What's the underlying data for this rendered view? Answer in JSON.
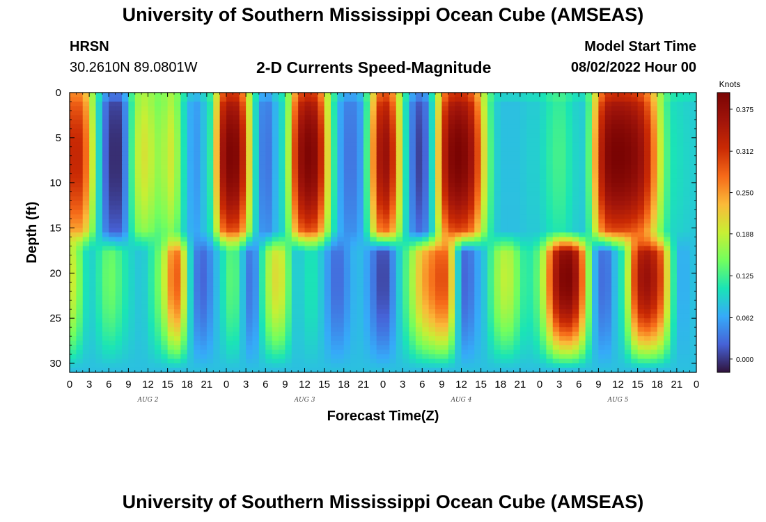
{
  "header": {
    "title": "University of Southern Mississippi Ocean Cube (AMSEAS)",
    "station_id": "HRSN",
    "station_coords": "30.2610N  89.0801W",
    "chart_title": "2-D Currents Speed-Magnitude",
    "start_label": "Model Start Time",
    "start_value": "08/02/2022 Hour 00"
  },
  "footer": {
    "title": "University of Southern Mississippi Ocean Cube (AMSEAS)"
  },
  "chart_data": {
    "type": "heatmap",
    "title": "2-D Currents Speed-Magnitude",
    "xlabel": "Forecast Time(Z)",
    "ylabel": "Depth (ft)",
    "x_range_hours": [
      0,
      96
    ],
    "y_range_ft": [
      0,
      31
    ],
    "y_inverted": true,
    "x_tick_labels": [
      "0",
      "3",
      "6",
      "9",
      "12",
      "15",
      "18",
      "21",
      "0",
      "3",
      "6",
      "9",
      "12",
      "15",
      "18",
      "21",
      "0",
      "3",
      "6",
      "9",
      "12",
      "15",
      "18",
      "21",
      "0",
      "3",
      "6",
      "9",
      "12",
      "15",
      "18",
      "21",
      "0"
    ],
    "day_labels": [
      "AUG 2",
      "AUG 3",
      "AUG 4",
      "AUG 5"
    ],
    "y_tick_values": [
      0,
      5,
      10,
      15,
      20,
      25,
      30
    ],
    "y_tick_labels": [
      "0",
      "5",
      "10",
      "15",
      "20",
      "25",
      "30"
    ],
    "colorbar": {
      "label": "Knots",
      "range": [
        -0.02,
        0.4
      ],
      "tick_values": [
        0.375,
        0.312,
        0.25,
        0.188,
        0.125,
        0.062,
        0.0
      ],
      "tick_labels": [
        "0.375",
        "0.312",
        "0.250",
        "0.188",
        "0.125",
        "0.062",
        "0.000"
      ]
    },
    "upper_layer_max_depth_ft": 16.5,
    "upper_layer_columns_hours": [
      0,
      1,
      2,
      3,
      4,
      5,
      6,
      7,
      8,
      9,
      10,
      11,
      12,
      13,
      14,
      15,
      16,
      17,
      18,
      19,
      20,
      21,
      22,
      23,
      24,
      25,
      26,
      27,
      28,
      29,
      30,
      31,
      32,
      33,
      34,
      35,
      36,
      37,
      38,
      39,
      40,
      41,
      42,
      43,
      44,
      45,
      46,
      47,
      48,
      49,
      50,
      51,
      52,
      53,
      54,
      55,
      56,
      57,
      58,
      59,
      60,
      61,
      62,
      63,
      64,
      65,
      66,
      67,
      68,
      69,
      70,
      71,
      72,
      73,
      74,
      75,
      76,
      77,
      78,
      79,
      80,
      81,
      82,
      83,
      84,
      85,
      86,
      87,
      88,
      89,
      90,
      91,
      92,
      93,
      94,
      95
    ],
    "upper_layer_speed_knots": [
      0.31,
      0.33,
      0.31,
      0.24,
      0.14,
      0.05,
      0.0,
      -0.01,
      0.0,
      0.08,
      0.17,
      0.2,
      0.2,
      0.17,
      0.16,
      0.19,
      0.2,
      0.13,
      0.08,
      0.05,
      0.06,
      0.1,
      0.13,
      0.33,
      0.39,
      0.4,
      0.38,
      0.28,
      0.14,
      0.06,
      0.02,
      0.05,
      0.09,
      0.11,
      0.24,
      0.36,
      0.39,
      0.4,
      0.37,
      0.27,
      0.15,
      0.08,
      0.04,
      0.03,
      0.04,
      0.07,
      0.18,
      0.33,
      0.37,
      0.36,
      0.27,
      0.15,
      0.06,
      0.01,
      0.0,
      0.05,
      0.15,
      0.3,
      0.38,
      0.4,
      0.4,
      0.38,
      0.34,
      0.25,
      0.16,
      0.1,
      0.08,
      0.08,
      0.08,
      0.08,
      0.09,
      0.09,
      0.09,
      0.11,
      0.12,
      0.13,
      0.12,
      0.1,
      0.09,
      0.09,
      0.18,
      0.3,
      0.38,
      0.4,
      0.4,
      0.4,
      0.39,
      0.38,
      0.35,
      0.3,
      0.23,
      0.15,
      0.11,
      0.1,
      0.1,
      0.09
    ],
    "lower_layer_columns_hours": [
      0,
      1,
      2,
      3,
      4,
      5,
      6,
      7,
      8,
      9,
      10,
      11,
      12,
      13,
      14,
      15,
      16,
      17,
      18,
      19,
      20,
      21,
      22,
      23,
      24,
      25,
      26,
      27,
      28,
      29,
      30,
      31,
      32,
      33,
      34,
      35,
      36,
      37,
      38,
      39,
      40,
      41,
      42,
      43,
      44,
      45,
      46,
      47,
      48,
      49,
      50,
      51,
      52,
      53,
      54,
      55,
      56,
      57,
      58,
      59,
      60,
      61,
      62,
      63,
      64,
      65,
      66,
      67,
      68,
      69,
      70,
      71,
      72,
      73,
      74,
      75,
      76,
      77,
      78,
      79,
      80,
      81,
      82,
      83,
      84,
      85,
      86,
      87,
      88,
      89,
      90,
      91,
      92,
      93,
      94,
      95
    ],
    "lower_layer_speed_knots": [
      0.2,
      0.18,
      0.12,
      0.09,
      0.1,
      0.13,
      0.15,
      0.14,
      0.12,
      0.1,
      0.09,
      0.08,
      0.1,
      0.13,
      0.16,
      0.22,
      0.3,
      0.26,
      0.14,
      0.05,
      0.02,
      0.03,
      0.06,
      0.09,
      0.12,
      0.15,
      0.11,
      0.05,
      0.02,
      0.08,
      0.15,
      0.2,
      0.21,
      0.18,
      0.1,
      0.08,
      0.1,
      0.11,
      0.1,
      0.07,
      0.04,
      0.02,
      0.04,
      0.06,
      0.08,
      0.07,
      0.05,
      0.02,
      0.0,
      0.02,
      0.07,
      0.11,
      0.15,
      0.2,
      0.24,
      0.26,
      0.28,
      0.3,
      0.28,
      0.15,
      0.03,
      0.02,
      0.05,
      0.07,
      0.1,
      0.15,
      0.18,
      0.19,
      0.17,
      0.13,
      0.11,
      0.12,
      0.15,
      0.22,
      0.32,
      0.38,
      0.4,
      0.39,
      0.33,
      0.22,
      0.1,
      0.04,
      0.02,
      0.05,
      0.1,
      0.12,
      0.25,
      0.34,
      0.37,
      0.36,
      0.33,
      0.27,
      0.15,
      0.08,
      0.06,
      0.08
    ]
  }
}
